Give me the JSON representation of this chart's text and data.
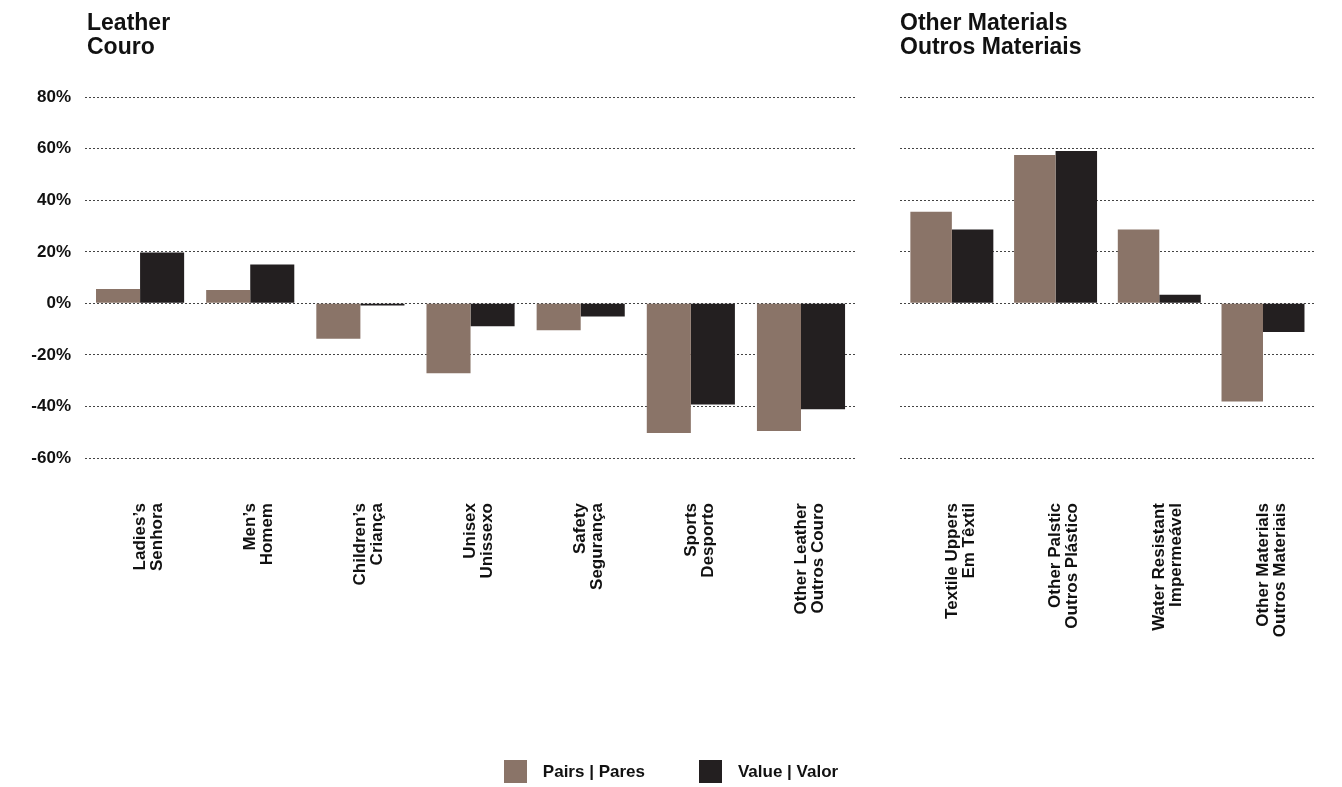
{
  "chart_data": [
    {
      "type": "bar",
      "title": "Leather\nCouro",
      "categories": [
        "Ladies’s\nSenhora",
        "Men’s\nHomem",
        "Children’s\nCriança",
        "Unisex\nUnissexo",
        "Safety\nSegurança",
        "Sports\nDesporto",
        "Other Leather\nOutros Couro"
      ],
      "series": [
        {
          "name": "Pairs | Pares",
          "color": "#8a7468",
          "values": [
            5.6,
            5.2,
            -13.7,
            -27.1,
            -10.4,
            -50.3,
            -49.5
          ]
        },
        {
          "name": "Value | Valor",
          "color": "#231f20",
          "values": [
            19.7,
            15.1,
            -0.8,
            -8.9,
            -5.1,
            -39.2,
            -41.1
          ]
        }
      ],
      "ylim": [
        -60,
        80
      ],
      "yticks": [
        {
          "value": -60,
          "label": "-60%"
        },
        {
          "value": -40,
          "label": "-40%"
        },
        {
          "value": -20,
          "label": "-20%"
        },
        {
          "value": 0,
          "label": "0%"
        },
        {
          "value": 20,
          "label": "20%"
        },
        {
          "value": 40,
          "label": "40%"
        },
        {
          "value": 60,
          "label": "60%"
        },
        {
          "value": 80,
          "label": "80%"
        }
      ],
      "grid": "y",
      "legend": "bottom"
    },
    {
      "type": "bar",
      "title": "Other Materials\nOutros Materiais",
      "categories": [
        "Textile Uppers\nEm Têxtil",
        "Other Palstic\nOutros Plástico",
        "Water Resistant\nImpermeável",
        "Other Materials\nOutros Materiais"
      ],
      "series": [
        {
          "color": "#8a7468",
          "values": [
            35.6,
            57.6,
            28.7,
            -38.1
          ]
        },
        {
          "color": "#231f20",
          "values": [
            28.7,
            59.1,
            3.3,
            -11.1
          ]
        }
      ],
      "ylim": [
        -60,
        80
      ],
      "yticks": [
        {
          "value": -60,
          "label": null
        },
        {
          "value": -40,
          "label": null
        },
        {
          "value": -20,
          "label": null
        },
        {
          "value": 0,
          "label": null
        },
        {
          "value": 20,
          "label": null
        },
        {
          "value": 40,
          "label": null
        },
        {
          "value": 60,
          "label": null
        },
        {
          "value": 80,
          "label": null
        }
      ],
      "grid": "y",
      "tick_labels": "x"
    }
  ]
}
